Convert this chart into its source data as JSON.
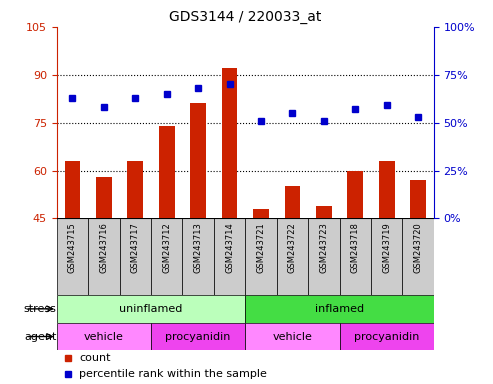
{
  "title": "GDS3144 / 220033_at",
  "samples": [
    "GSM243715",
    "GSM243716",
    "GSM243717",
    "GSM243712",
    "GSM243713",
    "GSM243714",
    "GSM243721",
    "GSM243722",
    "GSM243723",
    "GSM243718",
    "GSM243719",
    "GSM243720"
  ],
  "counts": [
    63,
    58,
    63,
    74,
    81,
    92,
    48,
    55,
    49,
    60,
    63,
    57
  ],
  "percentiles": [
    63,
    58,
    63,
    65,
    68,
    70,
    51,
    55,
    51,
    57,
    59,
    53
  ],
  "ylim_left": [
    45,
    105
  ],
  "ylim_right": [
    0,
    100
  ],
  "yticks_left": [
    45,
    60,
    75,
    90,
    105
  ],
  "yticks_right": [
    0,
    25,
    50,
    75,
    100
  ],
  "bar_color": "#cc2200",
  "dot_color": "#0000cc",
  "uninflamed_color": "#bbffbb",
  "inflamed_color": "#44dd44",
  "vehicle_color": "#ff88ff",
  "procyanidin_color": "#ee44ee",
  "legend_count_color": "#cc2200",
  "legend_pct_color": "#0000cc",
  "tick_color_left": "#cc2200",
  "tick_color_right": "#0000cc",
  "grid_dotted_color": "black",
  "sample_box_color": "#cccccc"
}
